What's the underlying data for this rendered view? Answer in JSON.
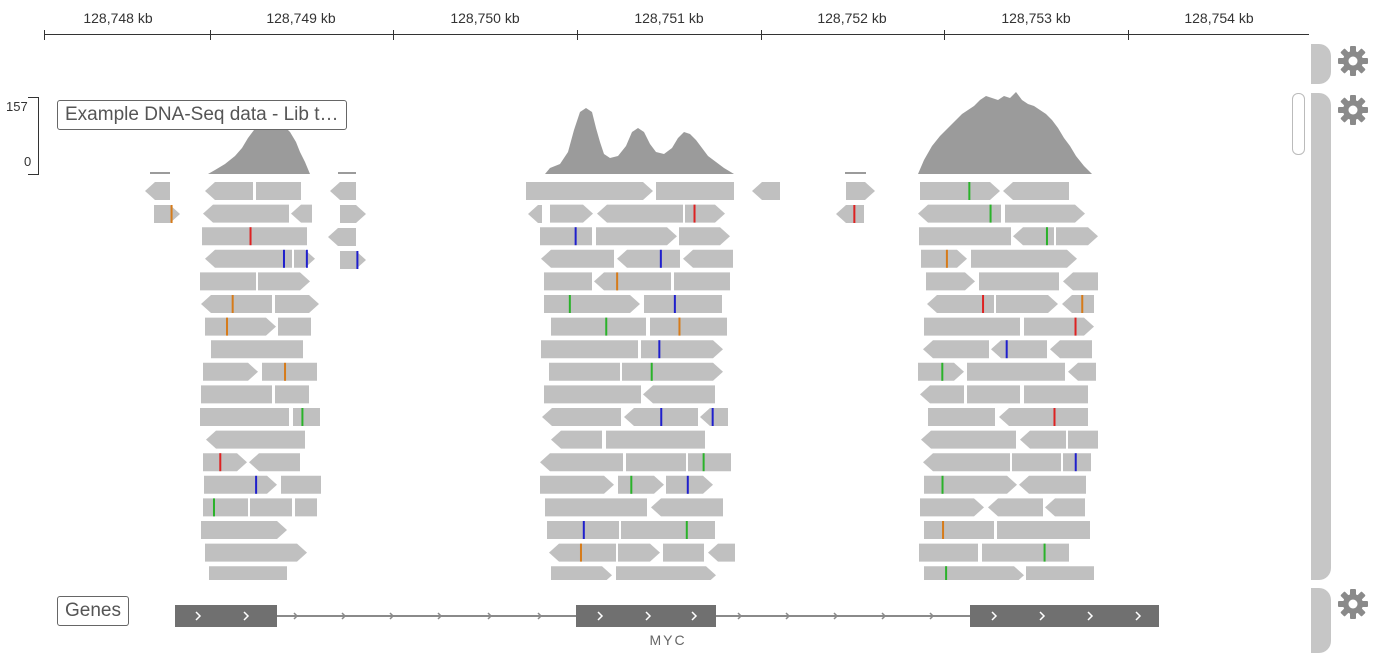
{
  "ruler": {
    "ticks": [
      "128,748 kb",
      "128,749 kb",
      "128,750 kb",
      "128,751 kb",
      "128,752 kb",
      "128,753 kb",
      "128,754 kb"
    ]
  },
  "coverage_scale": {
    "max": "157",
    "min": "0"
  },
  "tracks": {
    "alignment_label": "Example DNA-Seq data - Lib t…",
    "genes_label": "Genes"
  },
  "gene": {
    "name": "MYC"
  },
  "colors": {
    "coverage": "#9b9b9b",
    "read": "#c0c0c0",
    "gene_exon": "#707070",
    "mismatch_A": "#2ab22a",
    "mismatch_C": "#1f1fcc",
    "mismatch_G": "#d67b1a",
    "mismatch_T": "#dd2222",
    "panel": "#c6c6c6"
  },
  "icons": {
    "settings": "gear-icon"
  }
}
